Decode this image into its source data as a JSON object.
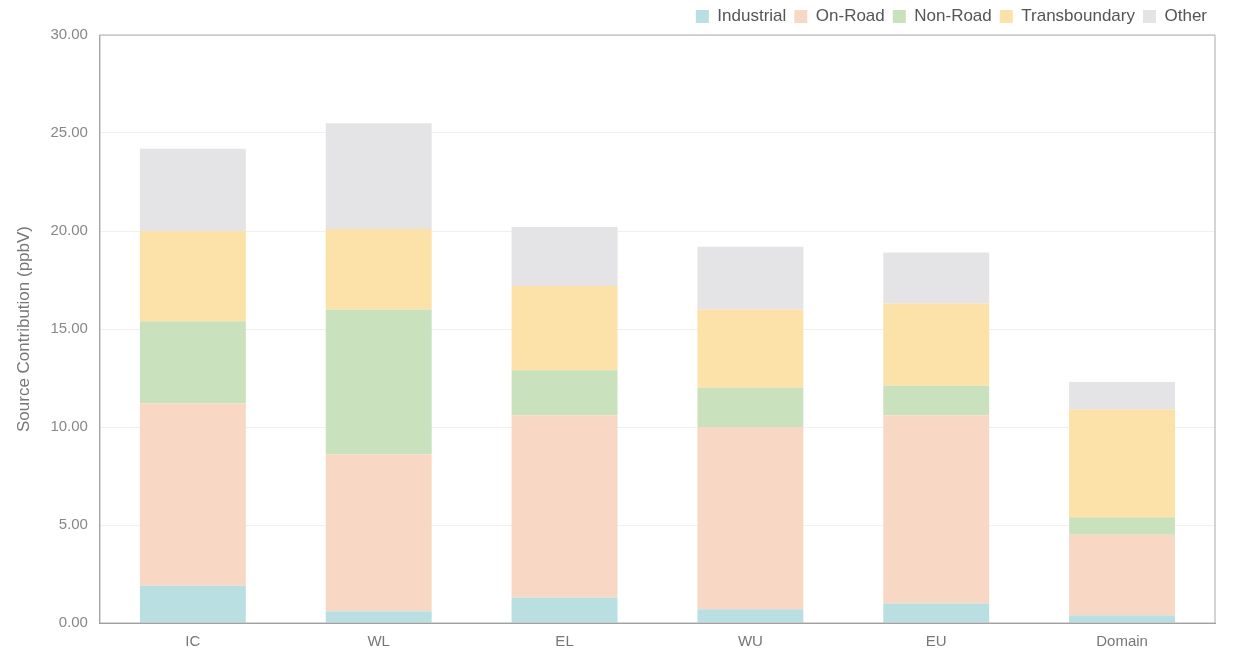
{
  "chart_data": {
    "type": "bar",
    "stacked": true,
    "ylabel": "Source Contribution (ppbV)",
    "categories": [
      "IC",
      "WL",
      "EL",
      "WU",
      "EU",
      "Domain"
    ],
    "series": [
      {
        "name": "Industrial",
        "color": "#b9dfe2",
        "values": [
          1.9,
          0.6,
          1.3,
          0.7,
          1.0,
          0.4
        ]
      },
      {
        "name": "On-Road",
        "color": "#f8d8c4",
        "values": [
          9.3,
          8.0,
          9.3,
          9.3,
          9.6,
          4.1
        ]
      },
      {
        "name": "Non-Road",
        "color": "#c9e2bd",
        "values": [
          4.2,
          7.4,
          2.3,
          2.0,
          1.5,
          0.9
        ]
      },
      {
        "name": "Transboundary",
        "color": "#fce2a8",
        "values": [
          4.6,
          4.1,
          4.3,
          4.0,
          4.2,
          5.5
        ]
      },
      {
        "name": "Other",
        "color": "#e4e4e6",
        "values": [
          4.2,
          5.4,
          3.0,
          3.2,
          2.6,
          1.4
        ]
      }
    ],
    "ylim": [
      0,
      30
    ],
    "yticks": [
      {
        "value": 0,
        "label": "0.00"
      },
      {
        "value": 5,
        "label": "5.00"
      },
      {
        "value": 10,
        "label": "10.00"
      },
      {
        "value": 15,
        "label": "15.00"
      },
      {
        "value": 20,
        "label": "20.00"
      },
      {
        "value": 25,
        "label": "25.00"
      },
      {
        "value": 30,
        "label": "30.00"
      }
    ],
    "grid": "y",
    "legend": "top right"
  }
}
